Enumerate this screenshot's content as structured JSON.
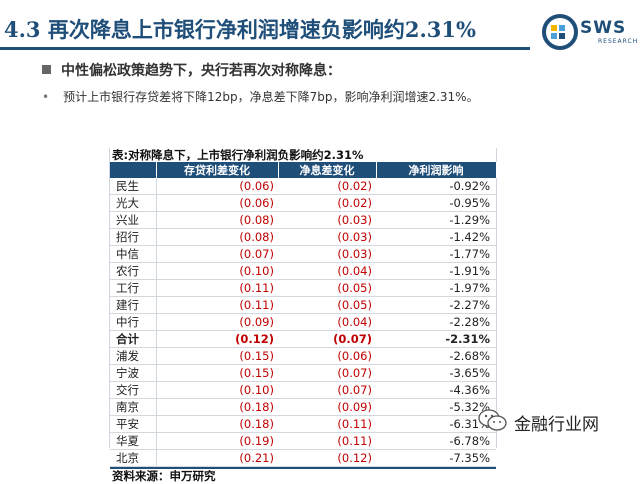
{
  "slide": {
    "title": "4.3  再次降息上市银行净利润增速负影响约2.31%",
    "heading": "中性偏松政策趋势下，央行若再次对称降息：",
    "bullet": "预计上市银行存贷差将下降12bp，净息差下降7bp，影响净利润增速2.31%。"
  },
  "logo": {
    "text": "SWS",
    "subtext": "RESEARCH",
    "color": "#1f4e79"
  },
  "table": {
    "title": "表:对称降息下，上市银行净利润负影响约2.31%",
    "headers": [
      "",
      "存贷利差变化",
      "净息差变化",
      "净利润影响"
    ],
    "rows": [
      {
        "bank": "民生",
        "loan_spread": "(0.06)",
        "nim": "(0.02)",
        "profit": "-0.92%"
      },
      {
        "bank": "光大",
        "loan_spread": "(0.06)",
        "nim": "(0.02)",
        "profit": "-0.95%"
      },
      {
        "bank": "兴业",
        "loan_spread": "(0.08)",
        "nim": "(0.03)",
        "profit": "-1.29%"
      },
      {
        "bank": "招行",
        "loan_spread": "(0.08)",
        "nim": "(0.03)",
        "profit": "-1.42%"
      },
      {
        "bank": "中信",
        "loan_spread": "(0.07)",
        "nim": "(0.03)",
        "profit": "-1.77%"
      },
      {
        "bank": "农行",
        "loan_spread": "(0.10)",
        "nim": "(0.04)",
        "profit": "-1.91%"
      },
      {
        "bank": "工行",
        "loan_spread": "(0.11)",
        "nim": "(0.05)",
        "profit": "-1.97%"
      },
      {
        "bank": "建行",
        "loan_spread": "(0.11)",
        "nim": "(0.05)",
        "profit": "-2.27%"
      },
      {
        "bank": "中行",
        "loan_spread": "(0.09)",
        "nim": "(0.04)",
        "profit": "-2.28%"
      },
      {
        "bank": "合计",
        "loan_spread": "(0.12)",
        "nim": "(0.07)",
        "profit": "-2.31%",
        "total": true
      },
      {
        "bank": "浦发",
        "loan_spread": "(0.15)",
        "nim": "(0.06)",
        "profit": "-2.68%"
      },
      {
        "bank": "宁波",
        "loan_spread": "(0.15)",
        "nim": "(0.07)",
        "profit": "-3.65%"
      },
      {
        "bank": "交行",
        "loan_spread": "(0.10)",
        "nim": "(0.07)",
        "profit": "-4.36%"
      },
      {
        "bank": "南京",
        "loan_spread": "(0.18)",
        "nim": "(0.09)",
        "profit": "-5.32%"
      },
      {
        "bank": "平安",
        "loan_spread": "(0.18)",
        "nim": "(0.11)",
        "profit": "-6.31%"
      },
      {
        "bank": "华夏",
        "loan_spread": "(0.19)",
        "nim": "(0.11)",
        "profit": "-6.78%"
      },
      {
        "bank": "北京",
        "loan_spread": "(0.21)",
        "nim": "(0.12)",
        "profit": "-7.35%"
      }
    ],
    "source": "资料来源：申万研究"
  },
  "watermark": {
    "text": "金融行业网",
    "icon": "wechat-icon"
  },
  "colors": {
    "accent": "#1f4e79",
    "negative": "#c00000"
  }
}
